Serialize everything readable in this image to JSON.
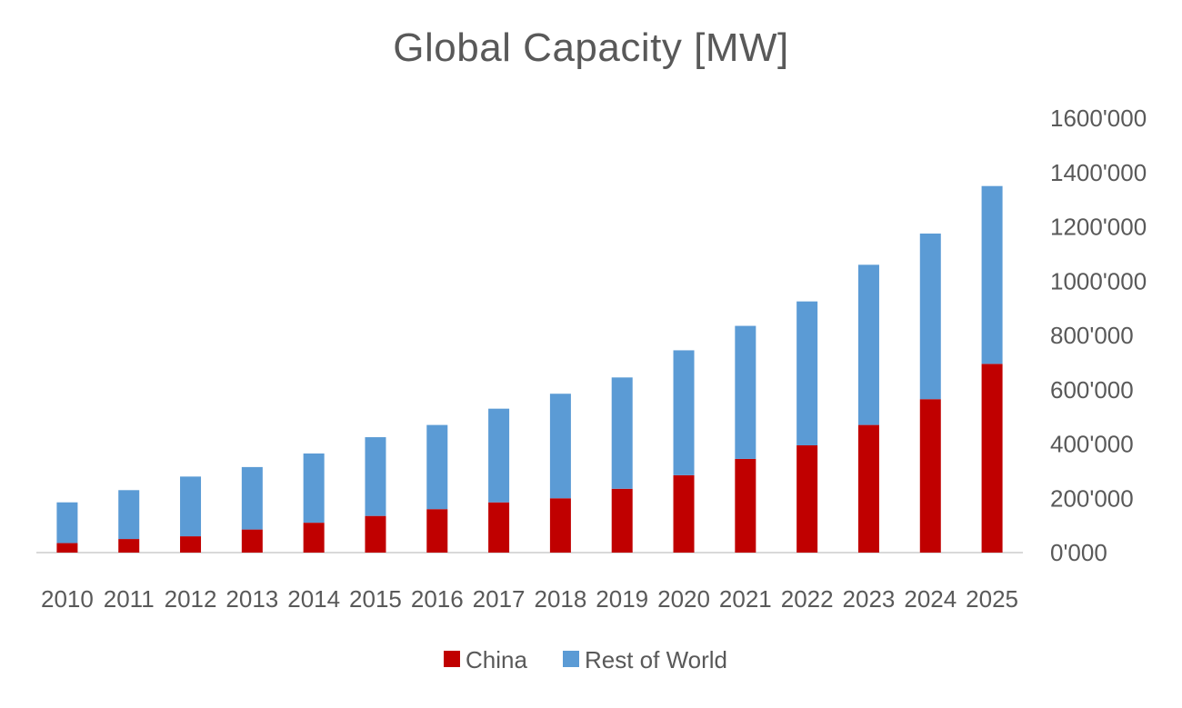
{
  "chart_data": {
    "type": "bar",
    "stacked": true,
    "title": "Global Capacity [MW]",
    "xlabel": "",
    "ylabel": "",
    "categories": [
      "2010",
      "2011",
      "2012",
      "2013",
      "2014",
      "2015",
      "2016",
      "2017",
      "2018",
      "2019",
      "2020",
      "2021",
      "2022",
      "2023",
      "2024",
      "2025"
    ],
    "series": [
      {
        "name": "China",
        "color": "#C00000",
        "values": [
          35000,
          50000,
          60000,
          85000,
          110000,
          135000,
          160000,
          185000,
          200000,
          235000,
          285000,
          345000,
          395000,
          470000,
          565000,
          695000
        ]
      },
      {
        "name": "Rest of World",
        "color": "#5B9BD5",
        "values": [
          150000,
          180000,
          220000,
          230000,
          255000,
          290000,
          310000,
          345000,
          385000,
          410000,
          460000,
          490000,
          530000,
          590000,
          610000,
          655000
        ]
      }
    ],
    "y_axis_position": "right",
    "yticks": [
      0,
      200000,
      400000,
      600000,
      800000,
      1000000,
      1200000,
      1400000,
      1600000
    ],
    "ytick_labels": [
      "0'000",
      "200'000",
      "400'000",
      "600'000",
      "800'000",
      "1000'000",
      "1200'000",
      "1400'000",
      "1600'000"
    ],
    "ylim": [
      0,
      1600000
    ],
    "grid": false,
    "legend_position": "bottom"
  }
}
